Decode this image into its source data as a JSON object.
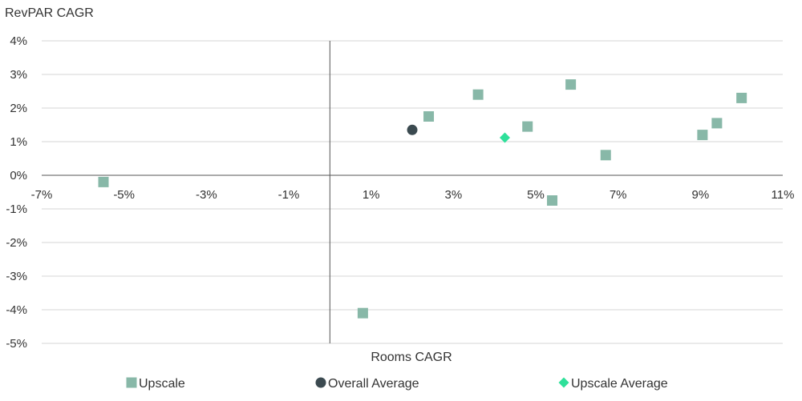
{
  "chart_data": {
    "type": "scatter",
    "ylabel": "RevPAR CAGR",
    "xlabel": "Rooms CAGR",
    "xlim": [
      -7,
      11
    ],
    "ylim": [
      -5,
      4
    ],
    "x_ticks": [
      -7,
      -5,
      -3,
      -1,
      1,
      3,
      5,
      7,
      9,
      11
    ],
    "x_tick_labels": [
      "-7%",
      "-5%",
      "-3%",
      "-1%",
      "1%",
      "3%",
      "5%",
      "7%",
      "9%",
      "11%"
    ],
    "y_ticks": [
      4,
      3,
      2,
      1,
      0,
      -1,
      -2,
      -3,
      -4,
      -5
    ],
    "y_tick_labels": [
      "4%",
      "3%",
      "2%",
      "1%",
      "0%",
      "-1%",
      "-2%",
      "-3%",
      "-4%",
      "-5%"
    ],
    "grid": "horizontal",
    "legend_position": "bottom",
    "series": [
      {
        "name": "Upscale",
        "marker": "square",
        "color": "#88b8a8",
        "points": [
          {
            "x": -5.5,
            "y": -0.2
          },
          {
            "x": 0.8,
            "y": -4.1
          },
          {
            "x": 2.4,
            "y": 1.75
          },
          {
            "x": 3.6,
            "y": 2.4
          },
          {
            "x": 4.8,
            "y": 1.45
          },
          {
            "x": 5.4,
            "y": -0.75
          },
          {
            "x": 5.85,
            "y": 2.7
          },
          {
            "x": 6.7,
            "y": 0.6
          },
          {
            "x": 9.05,
            "y": 1.2
          },
          {
            "x": 9.4,
            "y": 1.55
          },
          {
            "x": 10.0,
            "y": 2.3
          }
        ]
      },
      {
        "name": "Overall Average",
        "marker": "circle",
        "color": "#3b4a50",
        "points": [
          {
            "x": 2.0,
            "y": 1.35
          }
        ]
      },
      {
        "name": "Upscale Average",
        "marker": "diamond",
        "color": "#2ee09a",
        "points": [
          {
            "x": 4.25,
            "y": 1.12
          }
        ]
      }
    ]
  }
}
